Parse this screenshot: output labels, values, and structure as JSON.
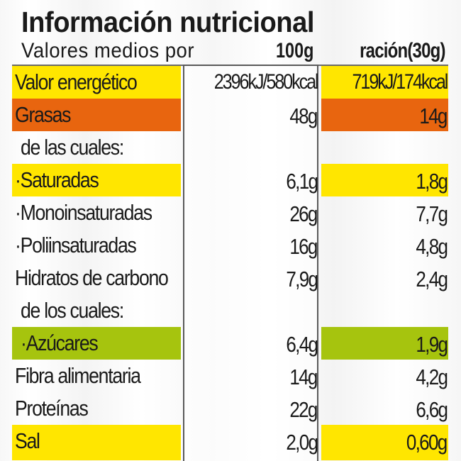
{
  "header": {
    "title": "Información nutricional",
    "subtitle": "Valores medios por",
    "col_100g": "100g",
    "col_portion": "ración(30g)"
  },
  "colors": {
    "yellow": "#ffe600",
    "orange": "#e8650f",
    "green": "#a6c40e"
  },
  "rows": [
    {
      "name": "Valor energético",
      "per100g": "2396kJ/580kcal",
      "portion": "719kJ/174kcal",
      "highlight": "yellow"
    },
    {
      "name": "Grasas",
      "per100g": "48g",
      "portion": "14g",
      "highlight": "orange"
    },
    {
      "name": "de las cuales:",
      "per100g": "",
      "portion": "",
      "highlight": "none"
    },
    {
      "name": "·Saturadas",
      "per100g": "6,1g",
      "portion": "1,8g",
      "highlight": "yellow"
    },
    {
      "name": "·Monoinsaturadas",
      "per100g": "26g",
      "portion": "7,7g",
      "highlight": "none"
    },
    {
      "name": "·Poliinsaturadas",
      "per100g": "16g",
      "portion": "4,8g",
      "highlight": "none"
    },
    {
      "name": "Hidratos de carbono",
      "per100g": "7,9g",
      "portion": "2,4g",
      "highlight": "none"
    },
    {
      "name": "de los cuales:",
      "per100g": "",
      "portion": "",
      "highlight": "none"
    },
    {
      "name": "·Azúcares",
      "per100g": "6,4g",
      "portion": "1,9g",
      "highlight": "green"
    },
    {
      "name": "Fibra alimentaria",
      "per100g": "14g",
      "portion": "4,2g",
      "highlight": "none"
    },
    {
      "name": "Proteínas",
      "per100g": "22g",
      "portion": "6,6g",
      "highlight": "none"
    },
    {
      "name": "Sal",
      "per100g": "2,0g",
      "portion": "0,60g",
      "highlight": "yellow"
    }
  ]
}
